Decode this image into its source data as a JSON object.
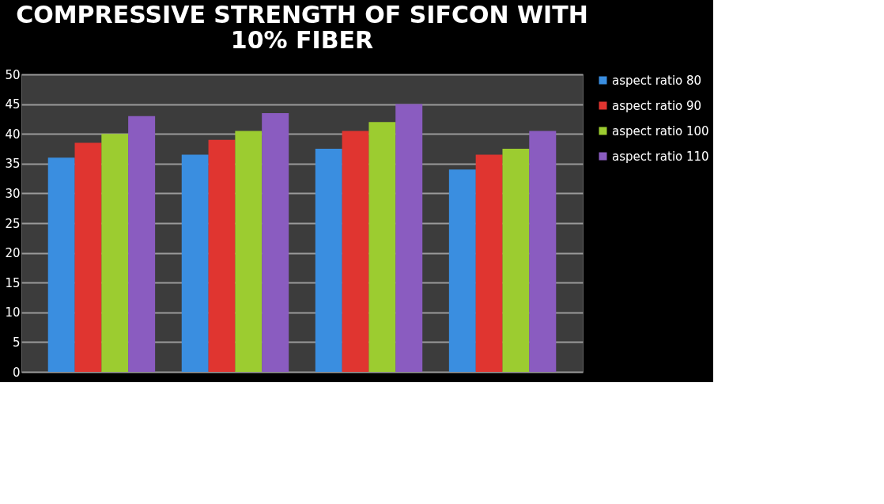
{
  "chart_data": {
    "type": "bar",
    "title": [
      "COMPRESSIVE STRENGTH OF SIFCON WITH",
      "10% FIBER"
    ],
    "categories": [
      null,
      null,
      null,
      null
    ],
    "series": [
      {
        "name": "aspect ratio 80",
        "color": "#3a8ee0",
        "values": [
          36,
          36.5,
          37.5,
          34
        ]
      },
      {
        "name": "aspect ratio 90",
        "color": "#e03530",
        "values": [
          38.5,
          39,
          40.5,
          36.5
        ]
      },
      {
        "name": "aspect ratio 100",
        "color": "#9ccc30",
        "values": [
          40,
          40.5,
          42,
          37.5
        ]
      },
      {
        "name": "aspect ratio 110",
        "color": "#8a5cc0",
        "values": [
          43,
          43.5,
          45,
          40.5
        ]
      }
    ],
    "ylim": [
      0,
      50
    ],
    "yticks": [
      0,
      5,
      10,
      15,
      20,
      25,
      30,
      35,
      40,
      45,
      50
    ],
    "grid": "y",
    "legend": "right"
  }
}
